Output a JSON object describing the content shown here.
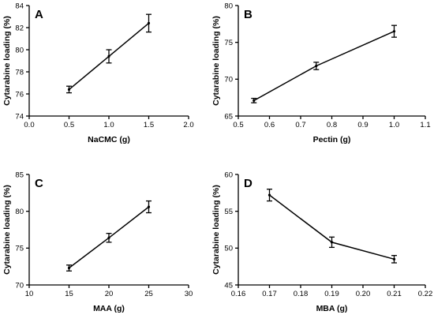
{
  "chart_data": [
    {
      "panel": "A",
      "type": "line",
      "xlabel": "NaCMC (g)",
      "ylabel": "Cytarabine loading (%)",
      "xlim": [
        0.0,
        2.0
      ],
      "ylim": [
        74,
        84
      ],
      "x_ticks": [
        0.0,
        0.5,
        1.0,
        1.5,
        2.0
      ],
      "y_ticks": [
        74,
        76,
        78,
        80,
        82,
        84
      ],
      "x_decimals": 1,
      "y_decimals": 0,
      "x": [
        0.5,
        1.0,
        1.5
      ],
      "y": [
        76.4,
        79.4,
        82.4
      ],
      "error": [
        0.3,
        0.6,
        0.8
      ]
    },
    {
      "panel": "B",
      "type": "line",
      "xlabel": "Pectin (g)",
      "ylabel": "Cytarabine loading (%)",
      "xlim": [
        0.5,
        1.1
      ],
      "ylim": [
        65,
        80
      ],
      "x_ticks": [
        0.5,
        0.6,
        0.7,
        0.8,
        0.9,
        1.0,
        1.1
      ],
      "y_ticks": [
        65,
        70,
        75,
        80
      ],
      "x_decimals": 1,
      "y_decimals": 0,
      "x": [
        0.55,
        0.75,
        1.0
      ],
      "y": [
        67.1,
        71.8,
        76.5
      ],
      "error": [
        0.3,
        0.5,
        0.8
      ]
    },
    {
      "panel": "C",
      "type": "line",
      "xlabel": "MAA (g)",
      "ylabel": "Cytarabine loading (%)",
      "xlim": [
        10,
        30
      ],
      "ylim": [
        70,
        85
      ],
      "x_ticks": [
        10,
        15,
        20,
        25,
        30
      ],
      "y_ticks": [
        70,
        75,
        80,
        85
      ],
      "x_decimals": 0,
      "y_decimals": 0,
      "x": [
        15,
        20,
        25
      ],
      "y": [
        72.3,
        76.4,
        80.6
      ],
      "error": [
        0.4,
        0.6,
        0.8
      ]
    },
    {
      "panel": "D",
      "type": "line",
      "xlabel": "MBA (g)",
      "ylabel": "Cytarabine loading (%)",
      "xlim": [
        0.16,
        0.22
      ],
      "ylim": [
        45,
        60
      ],
      "x_ticks": [
        0.16,
        0.17,
        0.18,
        0.19,
        0.2,
        0.21,
        0.22
      ],
      "y_ticks": [
        45,
        50,
        55,
        60
      ],
      "x_decimals": 2,
      "y_decimals": 0,
      "x": [
        0.17,
        0.19,
        0.21
      ],
      "y": [
        57.2,
        50.8,
        48.5
      ],
      "error": [
        0.8,
        0.7,
        0.5
      ]
    }
  ]
}
